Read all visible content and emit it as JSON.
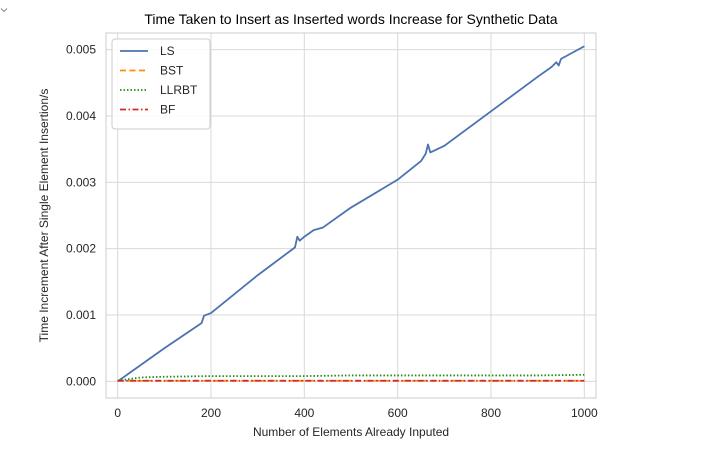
{
  "chart_data": {
    "type": "line",
    "title": "Time Taken to Insert as Inserted words Increase for Synthetic Data",
    "xlabel": "Number of Elements Already Inputed",
    "ylabel": "Time Increment After Single Element Insertion/s",
    "xlim": [
      -25,
      1025
    ],
    "ylim": [
      -0.00025,
      0.00525
    ],
    "xticks": [
      0,
      200,
      400,
      600,
      800,
      1000
    ],
    "yticks": [
      0.0,
      0.001,
      0.002,
      0.003,
      0.004,
      0.005
    ],
    "xtick_labels": [
      "0",
      "200",
      "400",
      "600",
      "800",
      "1000"
    ],
    "ytick_labels": [
      "0.000",
      "0.001",
      "0.002",
      "0.003",
      "0.004",
      "0.005"
    ],
    "grid": true,
    "legend_position": "top-left",
    "series": [
      {
        "name": "LS",
        "color": "#4c72b0",
        "style": "solid",
        "x": [
          0,
          100,
          180,
          185,
          200,
          300,
          380,
          385,
          390,
          400,
          420,
          440,
          500,
          600,
          650,
          660,
          665,
          670,
          700,
          800,
          900,
          930,
          940,
          945,
          950,
          1000
        ],
        "y": [
          0.0,
          0.0005,
          0.00088,
          0.00099,
          0.00103,
          0.0016,
          0.00202,
          0.00218,
          0.00212,
          0.00218,
          0.00228,
          0.00232,
          0.00262,
          0.00304,
          0.00332,
          0.00343,
          0.00357,
          0.00345,
          0.00355,
          0.00407,
          0.00459,
          0.00474,
          0.00481,
          0.00476,
          0.00486,
          0.00505
        ]
      },
      {
        "name": "BST",
        "color": "#ff8c0a",
        "style": "dashed",
        "x": [
          0,
          100,
          200,
          300,
          400,
          500,
          600,
          700,
          800,
          900,
          1000
        ],
        "y": [
          1e-05,
          1e-05,
          1e-05,
          1e-05,
          1e-05,
          1e-05,
          1e-05,
          1e-05,
          1e-05,
          1e-05,
          1e-05
        ]
      },
      {
        "name": "LLRBT",
        "color": "#1a8f1a",
        "style": "dotted",
        "x": [
          0,
          50,
          100,
          200,
          300,
          400,
          500,
          600,
          700,
          800,
          900,
          1000
        ],
        "y": [
          1e-05,
          6e-05,
          7e-05,
          8e-05,
          8e-05,
          8e-05,
          9e-05,
          9e-05,
          9e-05,
          9e-05,
          9e-05,
          0.0001
        ]
      },
      {
        "name": "BF",
        "color": "#d62728",
        "style": "dashdot",
        "x": [
          0,
          100,
          200,
          300,
          400,
          500,
          600,
          700,
          800,
          900,
          1000
        ],
        "y": [
          1e-05,
          1e-05,
          1e-05,
          1e-05,
          1e-05,
          1e-05,
          1e-05,
          1e-05,
          1e-05,
          1e-05,
          1e-05
        ]
      }
    ]
  }
}
